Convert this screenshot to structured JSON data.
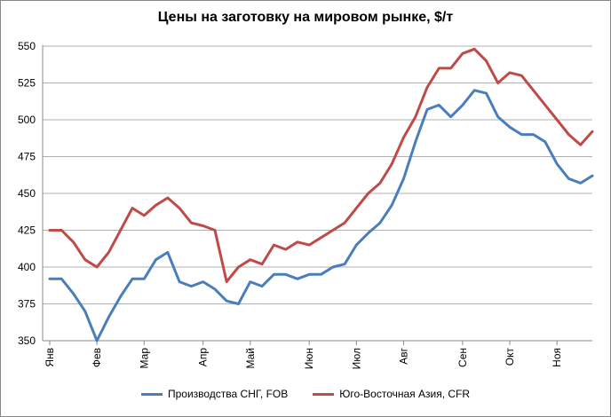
{
  "chart_data": {
    "type": "line",
    "title": "Цены на заготовку на мировом рынке, $/т",
    "xlabel": "",
    "ylabel": "",
    "ylim": [
      350,
      560
    ],
    "yticks": [
      350,
      375,
      400,
      425,
      450,
      475,
      500,
      525,
      550
    ],
    "months": [
      "Янв",
      "Фев",
      "Мар",
      "Апр",
      "Май",
      "Июн",
      "Июл",
      "Авг",
      "Сен",
      "Окт",
      "Ноя"
    ],
    "month_start_index": [
      0,
      4,
      8,
      13,
      17,
      22,
      26,
      30,
      35,
      39,
      43
    ],
    "grid": "horizontal",
    "legend_position": "bottom",
    "series": [
      {
        "name": "Производства СНГ, FOB",
        "color": "#4a7ebb",
        "values": [
          392,
          392,
          382,
          370,
          350,
          366,
          380,
          392,
          392,
          405,
          410,
          390,
          387,
          390,
          385,
          377,
          375,
          390,
          387,
          395,
          395,
          392,
          395,
          395,
          400,
          402,
          415,
          423,
          430,
          442,
          460,
          485,
          507,
          510,
          502,
          510,
          520,
          518,
          502,
          495,
          490,
          490,
          485,
          470,
          460,
          457,
          462
        ]
      },
      {
        "name": "Юго-Восточная Азия, CFR",
        "color": "#be4b48",
        "values": [
          425,
          425,
          417,
          405,
          400,
          410,
          425,
          440,
          435,
          442,
          447,
          440,
          430,
          428,
          425,
          390,
          400,
          405,
          402,
          415,
          412,
          417,
          415,
          420,
          425,
          430,
          440,
          450,
          457,
          470,
          488,
          502,
          522,
          535,
          535,
          545,
          548,
          540,
          525,
          532,
          530,
          520,
          510,
          500,
          490,
          483,
          492
        ]
      }
    ]
  }
}
